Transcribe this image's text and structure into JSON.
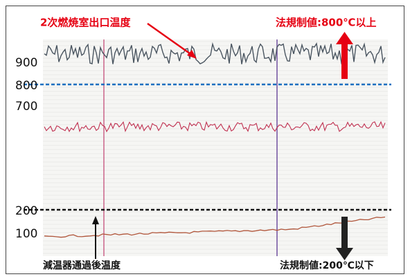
{
  "annotations": {
    "upper_trace": "2次燃焼室出口温度",
    "upper_limit": "法規制値:800℃以上",
    "lower_trace": "減温器通過後温度",
    "lower_limit": "法規制値:200℃以下"
  },
  "scale_labels": [
    900,
    800,
    700,
    200,
    100
  ]
}
